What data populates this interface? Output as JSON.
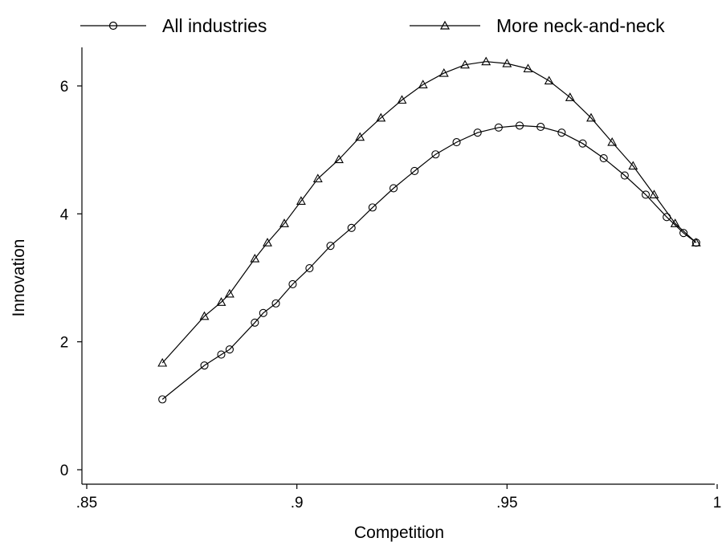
{
  "chart_data": {
    "type": "line",
    "xlabel": "Competition",
    "ylabel": "Innovation",
    "xlim": [
      0.85,
      1.0
    ],
    "ylim": [
      0,
      6.6
    ],
    "x_ticks": [
      ".85",
      ".9",
      ".95",
      "1"
    ],
    "x_tick_values": [
      0.85,
      0.9,
      0.95,
      1.0
    ],
    "y_ticks": [
      "0",
      "2",
      "4",
      "6"
    ],
    "y_tick_values": [
      0,
      2,
      4,
      6
    ],
    "grid": false,
    "legend_position": "top",
    "series": [
      {
        "name": "All industries",
        "marker": "circle",
        "color": "#000000",
        "x": [
          0.868,
          0.878,
          0.882,
          0.884,
          0.89,
          0.892,
          0.895,
          0.899,
          0.903,
          0.908,
          0.913,
          0.918,
          0.923,
          0.928,
          0.933,
          0.938,
          0.943,
          0.948,
          0.953,
          0.958,
          0.963,
          0.968,
          0.973,
          0.978,
          0.983,
          0.988,
          0.992,
          0.995
        ],
        "y": [
          1.1,
          1.63,
          1.8,
          1.88,
          2.3,
          2.45,
          2.6,
          2.9,
          3.15,
          3.5,
          3.78,
          4.1,
          4.4,
          4.67,
          4.93,
          5.12,
          5.27,
          5.35,
          5.38,
          5.36,
          5.27,
          5.1,
          4.87,
          4.6,
          4.3,
          3.95,
          3.7,
          3.55
        ]
      },
      {
        "name": "More neck-and-neck",
        "marker": "triangle",
        "color": "#000000",
        "x": [
          0.868,
          0.878,
          0.882,
          0.884,
          0.89,
          0.893,
          0.897,
          0.901,
          0.905,
          0.91,
          0.915,
          0.92,
          0.925,
          0.93,
          0.935,
          0.94,
          0.945,
          0.95,
          0.955,
          0.96,
          0.965,
          0.97,
          0.975,
          0.98,
          0.985,
          0.99,
          0.995
        ],
        "y": [
          1.67,
          2.4,
          2.62,
          2.75,
          3.3,
          3.55,
          3.85,
          4.2,
          4.55,
          4.85,
          5.2,
          5.5,
          5.78,
          6.02,
          6.2,
          6.33,
          6.38,
          6.35,
          6.27,
          6.08,
          5.82,
          5.5,
          5.12,
          4.75,
          4.3,
          3.85,
          3.55
        ]
      }
    ]
  }
}
